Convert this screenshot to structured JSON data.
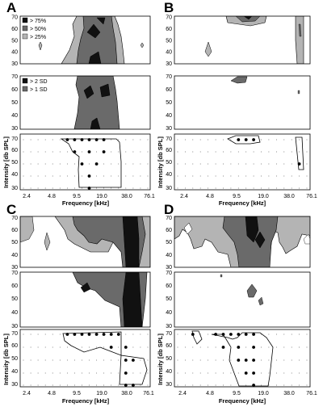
{
  "panels": [
    {
      "letter": "A",
      "ylabel": "Intensity [db SPL]",
      "xlabel": "Frequency [kHz]"
    },
    {
      "letter": "B",
      "ylabel": "Intensity [db SPL]",
      "xlabel": "Frequency [kHz]"
    },
    {
      "letter": "C",
      "ylabel": "Intensity [db SPL]",
      "xlabel": "Frequency [kHz]"
    },
    {
      "letter": "D",
      "ylabel": "Intensity [db SPL]",
      "xlabel": "Frequency [kHz]"
    }
  ],
  "legend_top": [
    {
      "label": "> 75%",
      "color": "#111111"
    },
    {
      "label": "> 50%",
      "color": "#6a6a6a"
    },
    {
      "label": "> 25%",
      "color": "#b4b4b4"
    }
  ],
  "legend_mid": [
    {
      "label": "> 2 SD",
      "color": "#111111"
    },
    {
      "label": "> 1 SD",
      "color": "#6a6a6a"
    }
  ],
  "y_ticks": [
    "30",
    "40",
    "50",
    "60",
    "70"
  ],
  "x_ticks": [
    "2.4",
    "4.8",
    "9.5",
    "19.0",
    "38.0",
    "76.1"
  ],
  "colors": {
    "dark": "#111111",
    "mid": "#6a6a6a",
    "light": "#b4b4b4"
  }
}
